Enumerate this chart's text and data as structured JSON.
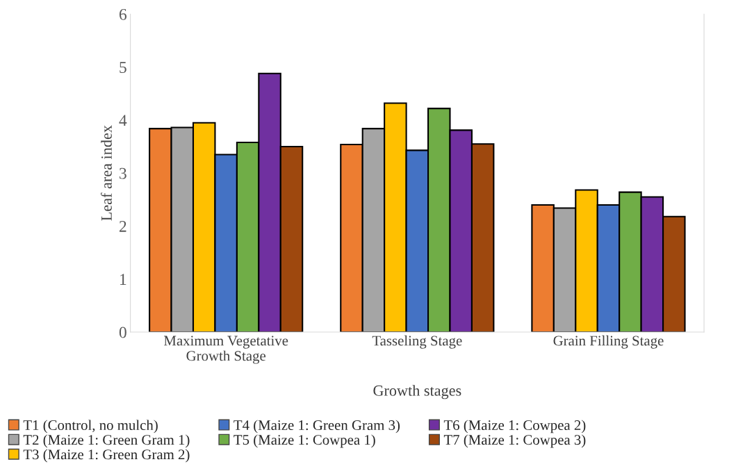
{
  "chart_data": {
    "type": "bar",
    "xlabel": "Growth stages",
    "ylabel": "Leaf area index",
    "categories": [
      "Maximum Vegetative\nGrowth Stage",
      "Tasseling Stage",
      "Grain Filling Stage"
    ],
    "series": [
      {
        "name": "T1 (Control, no mulch)",
        "color": "#ed7d31",
        "values": [
          3.84,
          3.54,
          2.4
        ]
      },
      {
        "name": "T2 (Maize 1: Green Gram 1)",
        "color": "#a5a5a5",
        "values": [
          3.86,
          3.84,
          2.34
        ]
      },
      {
        "name": "T3 (Maize 1: Green Gram 2)",
        "color": "#ffc000",
        "values": [
          3.95,
          4.32,
          2.68
        ]
      },
      {
        "name": "T4 (Maize 1: Green Gram 3)",
        "color": "#4472c4",
        "values": [
          3.35,
          3.43,
          2.4
        ]
      },
      {
        "name": "T5 (Maize 1: Cowpea 1)",
        "color": "#70ad47",
        "values": [
          3.58,
          4.22,
          2.64
        ]
      },
      {
        "name": "T6 (Maize 1: Cowpea 2)",
        "color": "#7030a0",
        "values": [
          4.88,
          3.81,
          2.55
        ]
      },
      {
        "name": "T7 (Maize 1: Cowpea 3)",
        "color": "#9e480e",
        "values": [
          3.5,
          3.55,
          2.18
        ]
      }
    ],
    "ylim": [
      0,
      6
    ],
    "yticks": [
      0,
      1,
      2,
      3,
      4,
      5,
      6
    ],
    "grid": false,
    "legend": "bottom"
  }
}
